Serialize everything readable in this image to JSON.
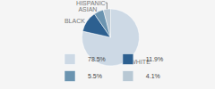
{
  "chart_data": {
    "type": "pie",
    "categories": [
      "WHITE",
      "BLACK",
      "ASIAN",
      "HISPANIC"
    ],
    "values": [
      78.5,
      11.9,
      5.5,
      4.1
    ],
    "value_labels": [
      "78.5%",
      "11.9%",
      "5.5%",
      "4.1%"
    ],
    "colors": [
      "#cdd9e5",
      "#2d6090",
      "#6b94b0",
      "#b8c8d4"
    ],
    "legend": "bottom"
  }
}
